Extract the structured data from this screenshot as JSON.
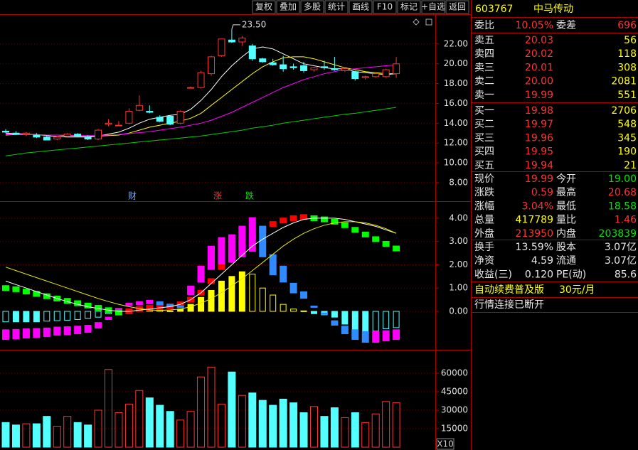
{
  "toolbar": [
    "复权",
    "叠加",
    "多股",
    "统计",
    "画线",
    "F10",
    "标记",
    "+自选",
    "返回"
  ],
  "charts": {
    "price": {
      "ylim": [
        6.13,
        25.0
      ],
      "yticks": [
        {
          "value": 22,
          "label": "22.00"
        },
        {
          "value": 20,
          "label": "20.00"
        },
        {
          "value": 18,
          "label": "18.00"
        },
        {
          "value": 16,
          "label": "16.00"
        },
        {
          "value": 14,
          "label": "14.00"
        },
        {
          "value": 12,
          "label": "12.00"
        },
        {
          "value": 10,
          "label": "10.00"
        },
        {
          "value": 8,
          "label": "8.00"
        }
      ],
      "open": [
        13.2,
        13.0,
        12.9,
        12.8,
        12.6,
        12.4,
        12.7,
        12.9,
        12.6,
        12.4,
        13.9,
        13.8,
        14.0,
        15.3,
        15.2,
        14.6,
        14.7,
        14.0,
        17.6,
        17.6,
        19.0,
        20.8,
        22.4,
        22.2,
        21.8,
        20.5,
        20.1,
        19.9,
        19.7,
        19.8,
        19.4,
        19.7,
        19.5,
        19.3,
        19.2,
        18.6,
        18.7,
        18.7,
        19.0
      ],
      "high": [
        13.4,
        13.2,
        13.1,
        13.0,
        12.8,
        12.7,
        13.0,
        13.0,
        12.8,
        13.4,
        14.4,
        14.2,
        15.5,
        16.8,
        15.8,
        14.8,
        14.8,
        15.3,
        17.7,
        19.3,
        20.8,
        22.5,
        23.5,
        22.8,
        22.0,
        20.6,
        20.5,
        20.8,
        20.0,
        20.2,
        19.7,
        20.3,
        20.7,
        19.6,
        19.3,
        18.8,
        19.1,
        19.5,
        20.68
      ],
      "low": [
        13.0,
        12.8,
        12.7,
        12.5,
        12.3,
        12.3,
        12.6,
        12.6,
        12.3,
        12.3,
        13.7,
        13.7,
        13.9,
        15.2,
        15.0,
        14.1,
        13.8,
        13.9,
        17.5,
        17.5,
        18.8,
        20.7,
        22.1,
        21.8,
        20.3,
        20.1,
        19.8,
        19.2,
        19.4,
        19.1,
        19.2,
        19.4,
        19.3,
        19.2,
        18.3,
        18.4,
        18.6,
        18.6,
        18.58
      ],
      "close": [
        13.1,
        12.9,
        13.0,
        12.6,
        12.3,
        12.6,
        12.9,
        12.7,
        12.4,
        13.3,
        14.0,
        13.8,
        15.2,
        15.8,
        15.1,
        14.2,
        13.9,
        15.2,
        17.6,
        19.1,
        20.7,
        22.5,
        22.2,
        22.6,
        20.5,
        20.2,
        19.9,
        19.5,
        19.6,
        19.3,
        19.6,
        19.6,
        19.4,
        19.5,
        18.5,
        18.7,
        19.0,
        19.4,
        19.99
      ],
      "ma": [
        {
          "color": "#ffffff",
          "values": [
            13.0,
            12.95,
            12.9,
            12.85,
            12.75,
            12.65,
            12.6,
            12.6,
            12.6,
            12.7,
            12.9,
            13.1,
            13.5,
            14.0,
            14.4,
            14.6,
            14.8,
            14.9,
            15.4,
            16.3,
            17.4,
            18.7,
            19.8,
            20.7,
            21.5,
            21.7,
            21.5,
            21.0,
            20.5,
            20.0,
            19.8,
            19.6,
            19.5,
            19.5,
            19.2,
            19.1,
            19.0,
            18.9,
            19.0
          ]
        },
        {
          "color": "#ffff00",
          "values": [
            12.8,
            12.85,
            12.85,
            12.85,
            12.8,
            12.8,
            12.75,
            12.7,
            12.7,
            12.7,
            12.75,
            12.8,
            13.0,
            13.3,
            13.6,
            13.8,
            14.0,
            14.2,
            14.5,
            15.0,
            15.8,
            16.6,
            17.4,
            18.2,
            19.0,
            19.7,
            20.2,
            20.6,
            20.7,
            20.7,
            20.5,
            20.2,
            19.9,
            19.6,
            19.4,
            19.2,
            19.1,
            19.0,
            19.0
          ]
        },
        {
          "color": "#ff00ff",
          "values": [
            12.9,
            12.9,
            12.85,
            12.85,
            12.8,
            12.8,
            12.8,
            12.75,
            12.75,
            12.75,
            12.8,
            12.85,
            12.95,
            13.05,
            13.15,
            13.3,
            13.45,
            13.6,
            13.8,
            14.0,
            14.3,
            14.7,
            15.1,
            15.6,
            16.1,
            16.6,
            17.1,
            17.6,
            18.0,
            18.4,
            18.7,
            19.0,
            19.2,
            19.4,
            19.5,
            19.6,
            19.7,
            19.8,
            19.9
          ]
        },
        {
          "color": "#00d000",
          "values": [
            10.7,
            10.85,
            11.0,
            11.1,
            11.2,
            11.3,
            11.4,
            11.5,
            11.6,
            11.7,
            11.8,
            11.9,
            12.0,
            12.1,
            12.2,
            12.3,
            12.4,
            12.5,
            12.6,
            12.7,
            12.85,
            13.0,
            13.15,
            13.3,
            13.5,
            13.65,
            13.8,
            14.0,
            14.15,
            14.3,
            14.45,
            14.6,
            14.75,
            14.9,
            15.0,
            15.15,
            15.3,
            15.45,
            15.6
          ]
        }
      ],
      "high_label": "23.50",
      "events": [
        "财",
        "涨",
        "跌"
      ]
    },
    "macd": {
      "ylim": [
        -1.65,
        4.67
      ],
      "yticks": [
        {
          "value": 4,
          "label": "4.00"
        },
        {
          "value": 3,
          "label": "3.00"
        },
        {
          "value": 2,
          "label": "2.00"
        },
        {
          "value": 1,
          "label": "1.00"
        },
        {
          "value": 0,
          "label": "0.00"
        }
      ],
      "hist": [
        -0.45,
        -0.45,
        -0.45,
        -0.45,
        -0.42,
        -0.4,
        -0.38,
        -0.35,
        -0.3,
        -0.25,
        -0.1,
        0.02,
        0.1,
        0.15,
        0.12,
        0.05,
        0.02,
        0.1,
        0.3,
        0.6,
        0.9,
        1.3,
        1.5,
        1.7,
        1.6,
        1.0,
        0.7,
        0.3,
        0.1,
        0.02,
        -0.1,
        -0.15,
        -0.25,
        -0.55,
        -0.9,
        -0.95,
        -0.85,
        -0.75,
        -0.7
      ],
      "blocks": [
        1.0,
        0.95,
        0.85,
        0.75,
        0.65,
        0.55,
        0.45,
        0.35,
        0.25,
        0.15,
        0.05,
        -0.05,
        0.0,
        0.1,
        0.15,
        0.2,
        0.22,
        0.3,
        0.5,
        0.8,
        1.3,
        1.9,
        2.4,
        2.9,
        3.2,
        3.5,
        3.75,
        3.9,
        4.0,
        4.05,
        4.0,
        3.95,
        3.85,
        3.7,
        3.5,
        3.3,
        3.1,
        2.9,
        2.7
      ],
      "blocks2": [
        -1.0,
        -0.98,
        -0.95,
        -0.93,
        -0.9,
        -0.85,
        -0.83,
        -0.8,
        -0.75,
        -0.6,
        -0.3,
        0.1,
        0.3,
        0.35,
        0.4,
        0.35,
        0.25,
        0.2,
        0.9,
        1.6,
        2.3,
        2.6,
        2.7,
        3.0,
        3.3,
        3.0,
        2.0,
        1.6,
        1.0,
        0.7,
        0.2,
        -0.1,
        -0.5,
        -0.8,
        -1.0,
        -1.1,
        -1.1,
        -1.05,
        -1.0
      ],
      "dif": [
        1.3,
        1.15,
        1.0,
        0.85,
        0.7,
        0.55,
        0.42,
        0.3,
        0.2,
        0.12,
        0.05,
        0.0,
        0.0,
        0.05,
        0.1,
        0.15,
        0.2,
        0.3,
        0.5,
        0.8,
        1.2,
        1.6,
        2.0,
        2.4,
        2.8,
        3.1,
        3.35,
        3.6,
        3.8,
        3.95,
        4.0,
        4.0,
        4.0,
        3.95,
        3.85,
        3.75,
        3.65,
        3.5,
        3.35
      ],
      "dea": [
        1.9,
        1.75,
        1.6,
        1.45,
        1.3,
        1.15,
        1.0,
        0.85,
        0.7,
        0.55,
        0.42,
        0.3,
        0.2,
        0.12,
        0.06,
        0.04,
        0.06,
        0.1,
        0.2,
        0.35,
        0.55,
        0.8,
        1.1,
        1.4,
        1.75,
        2.1,
        2.45,
        2.8,
        3.1,
        3.35,
        3.55,
        3.7,
        3.8,
        3.85,
        3.85,
        3.8,
        3.7,
        3.55,
        3.35
      ]
    },
    "volume": {
      "ylim": [
        -2300,
        77300
      ],
      "yticks": [
        60000,
        45000,
        30000,
        15000
      ],
      "values": [
        20000,
        18000,
        19000,
        19000,
        25000,
        17000,
        25000,
        20000,
        18000,
        30000,
        63000,
        28000,
        35000,
        46000,
        40000,
        34000,
        29000,
        22000,
        29000,
        57000,
        65000,
        35000,
        61000,
        42000,
        44000,
        38000,
        34000,
        39000,
        36000,
        28000,
        33000,
        25000,
        32000,
        24000,
        28000,
        20000,
        27000,
        37000,
        36000
      ],
      "unit": "X10"
    }
  },
  "quote": {
    "code": "603767",
    "name": "中马传动",
    "ratio": {
      "label": "委比",
      "value": "10.05%",
      "label2": "委差",
      "value2": "696"
    },
    "asks": [
      {
        "label": "卖五",
        "price": "20.03",
        "volume": "56"
      },
      {
        "label": "卖四",
        "price": "20.02",
        "volume": "118"
      },
      {
        "label": "卖三",
        "price": "20.01",
        "volume": "308"
      },
      {
        "label": "卖二",
        "price": "20.00",
        "volume": "2081"
      },
      {
        "label": "卖一",
        "price": "19.99",
        "volume": "551"
      }
    ],
    "bids": [
      {
        "label": "买一",
        "price": "19.98",
        "volume": "2706"
      },
      {
        "label": "买二",
        "price": "19.97",
        "volume": "548"
      },
      {
        "label": "买三",
        "price": "19.96",
        "volume": "345"
      },
      {
        "label": "买四",
        "price": "19.95",
        "volume": "190"
      },
      {
        "label": "买五",
        "price": "19.94",
        "volume": "21"
      }
    ],
    "stats": [
      {
        "label": "现价",
        "value": "19.99",
        "label2": "今开",
        "value2": "19.00"
      },
      {
        "label": "涨跌",
        "value": "0.59",
        "label2": "最高",
        "value2": "20.68"
      },
      {
        "label": "涨幅",
        "value": "3.04%",
        "label2": "最低",
        "value2": "18.58"
      },
      {
        "label": "总量",
        "value": "417789",
        "label2": "量比",
        "value2": "1.46"
      },
      {
        "label": "外盘",
        "value": "213950",
        "label2": "内盘",
        "value2": "203839"
      }
    ],
    "fundamentals": [
      {
        "label": "换手",
        "value": "13.59%",
        "label2": "股本",
        "value2": "3.07亿"
      },
      {
        "label": "净资",
        "value": "4.59",
        "label2": "流通",
        "value2": "3.07亿"
      },
      {
        "label": "收益(三)",
        "value": "0.120",
        "label2": "PE(动)",
        "value2": "85.6"
      }
    ],
    "ad": {
      "text": "自动续费普及版",
      "price": "30元/月"
    },
    "status": "行情连接已断开"
  }
}
